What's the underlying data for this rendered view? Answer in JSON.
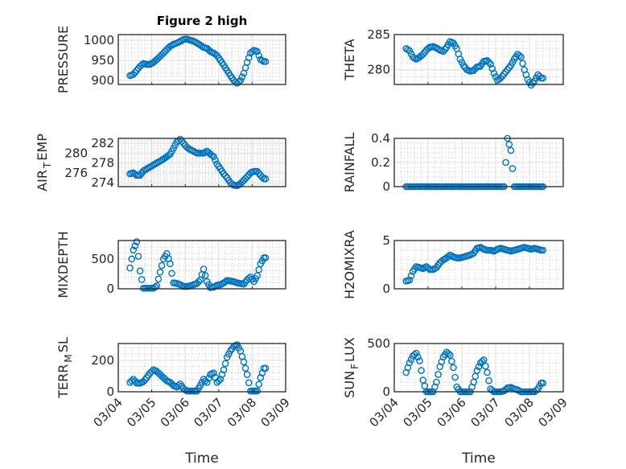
{
  "title": "Figure 2 high",
  "xlabel": "Time",
  "x_tick_labels": [
    "03/04",
    "03/05",
    "03/06",
    "03/07",
    "03/08",
    "03/09"
  ],
  "marker_color": "#0072BD",
  "chart_data": {
    "type": "scatter",
    "x_units": "days since 03/04",
    "xlim": [
      0,
      5
    ],
    "x": [
      0.35,
      0.45,
      0.55,
      0.65,
      0.75,
      0.85,
      0.95,
      1.05,
      1.15,
      1.25,
      1.35,
      1.45,
      1.55,
      1.65,
      1.75,
      1.85,
      1.95,
      2.05,
      2.15,
      2.25,
      2.35,
      2.45,
      2.55,
      2.65,
      2.75,
      2.85,
      2.95,
      3.05,
      3.15,
      3.25,
      3.35,
      3.45,
      3.55,
      3.65,
      3.75,
      3.85,
      3.95,
      4.05,
      4.15,
      4.25,
      4.35
    ],
    "panels": [
      {
        "name": "PRESSURE",
        "ylabel": [
          "PRESSURE",
          "",
          ""
        ],
        "ylim": [
          890,
          1014
        ],
        "yticks": [
          900,
          950,
          1000
        ],
        "values": [
          912,
          915,
          925,
          935,
          942,
          940,
          940,
          945,
          952,
          960,
          968,
          977,
          985,
          990,
          993,
          997,
          1002,
          1003,
          1000,
          998,
          993,
          988,
          982,
          980,
          972,
          968,
          962,
          950,
          938,
          925,
          912,
          900,
          893,
          900,
          918,
          945,
          968,
          975,
          972,
          952,
          947
        ]
      },
      {
        "name": "THETA",
        "ylabel": [
          "THETA",
          "",
          ""
        ],
        "ylim": [
          277.9,
          285
        ],
        "yticks": [
          280,
          285
        ],
        "values": [
          283,
          282.7,
          281.8,
          281.5,
          281.8,
          282.2,
          282.8,
          283.2,
          283.3,
          283.1,
          282.8,
          282.6,
          283.2,
          284,
          283.8,
          283,
          281.5,
          280.6,
          280,
          279.8,
          279.9,
          280.4,
          280.5,
          281.2,
          281.3,
          280.8,
          279.5,
          278.5,
          278.8,
          279.4,
          280,
          280.6,
          281.5,
          282.2,
          281.8,
          280,
          278.6,
          277.8,
          278.4,
          279.3,
          278.8
        ]
      },
      {
        "name": "AIR_TEMP",
        "ylabel": [
          "AIR",
          "T",
          "EMP"
        ],
        "ylim": [
          273.2,
          283
        ],
        "yticks": [
          274,
          276,
          278,
          280,
          282
        ],
        "values": [
          275.8,
          276,
          275.5,
          275.5,
          276.4,
          276.8,
          277.2,
          277.6,
          278,
          278.4,
          278.8,
          279.3,
          279.8,
          281,
          282.3,
          282.8,
          282,
          281.2,
          280.7,
          280.4,
          280,
          280,
          280,
          280.4,
          279.8,
          279.3,
          277.8,
          276.8,
          275.8,
          275,
          274,
          273.5,
          273.4,
          273.8,
          274.5,
          275.2,
          276,
          276.3,
          276.3,
          275.5,
          274.8
        ]
      },
      {
        "name": "RAINFALL",
        "ylabel": [
          "RAINFALL",
          "",
          ""
        ],
        "ylim": [
          0,
          0.4
        ],
        "yticks": [
          0,
          0.2,
          0.4
        ],
        "values": [
          0,
          0,
          0,
          0,
          0,
          0,
          0,
          0,
          0,
          0,
          0,
          0,
          0,
          0,
          0,
          0,
          0,
          0,
          0,
          0,
          0,
          0,
          0,
          0,
          0,
          0,
          0,
          0,
          0,
          0,
          0.4,
          0.3,
          0,
          0,
          0,
          0,
          0,
          0,
          0,
          0,
          0
        ]
      },
      {
        "name": "MIXDEPTH",
        "ylabel": [
          "MIXDEPTH",
          "",
          ""
        ],
        "ylim": [
          0,
          810
        ],
        "yticks": [
          0,
          500
        ],
        "values": [
          350,
          650,
          790,
          300,
          10,
          10,
          10,
          10,
          50,
          280,
          500,
          590,
          420,
          100,
          90,
          70,
          40,
          40,
          50,
          70,
          90,
          150,
          330,
          120,
          20,
          30,
          60,
          70,
          100,
          140,
          130,
          120,
          100,
          90,
          80,
          150,
          200,
          120,
          220,
          420,
          520
        ]
      },
      {
        "name": "H2OMIXRA",
        "ylabel": [
          "H2OMIXRA",
          "",
          ""
        ],
        "ylim": [
          0,
          5
        ],
        "yticks": [
          0,
          5
        ],
        "values": [
          0.8,
          0.9,
          1.8,
          2.3,
          2.2,
          2.1,
          2.3,
          2.0,
          2.0,
          2.2,
          2.7,
          3.0,
          3.2,
          3.5,
          3.3,
          3.2,
          3.2,
          3.3,
          3.4,
          3.5,
          3.7,
          4.2,
          4.3,
          4.1,
          4.0,
          4.0,
          3.9,
          4.1,
          4.2,
          4.1,
          4.0,
          3.9,
          4.0,
          4.1,
          4.2,
          4.3,
          4.2,
          4.1,
          4.2,
          4.1,
          4.0
        ]
      },
      {
        "name": "TERR_MSL",
        "ylabel": [
          "TERR",
          "M",
          "SL"
        ],
        "ylim": [
          0,
          308
        ],
        "yticks": [
          0,
          200
        ],
        "values": [
          60,
          80,
          55,
          55,
          65,
          90,
          120,
          140,
          130,
          110,
          90,
          70,
          60,
          40,
          30,
          50,
          20,
          5,
          5,
          5,
          5,
          40,
          80,
          60,
          110,
          120,
          60,
          80,
          140,
          220,
          260,
          290,
          300,
          260,
          190,
          110,
          5,
          5,
          5,
          90,
          150
        ]
      },
      {
        "name": "SUN_FLUX",
        "ylabel": [
          "SUN",
          "F",
          "LUX"
        ],
        "ylim": [
          0,
          500
        ],
        "yticks": [
          0,
          500
        ],
        "values": [
          200,
          300,
          370,
          400,
          320,
          120,
          0,
          0,
          0,
          100,
          260,
          360,
          410,
          380,
          250,
          50,
          0,
          0,
          0,
          0,
          100,
          220,
          300,
          330,
          200,
          30,
          0,
          0,
          0,
          10,
          40,
          45,
          30,
          20,
          0,
          0,
          0,
          0,
          0,
          30,
          90
        ]
      }
    ]
  }
}
